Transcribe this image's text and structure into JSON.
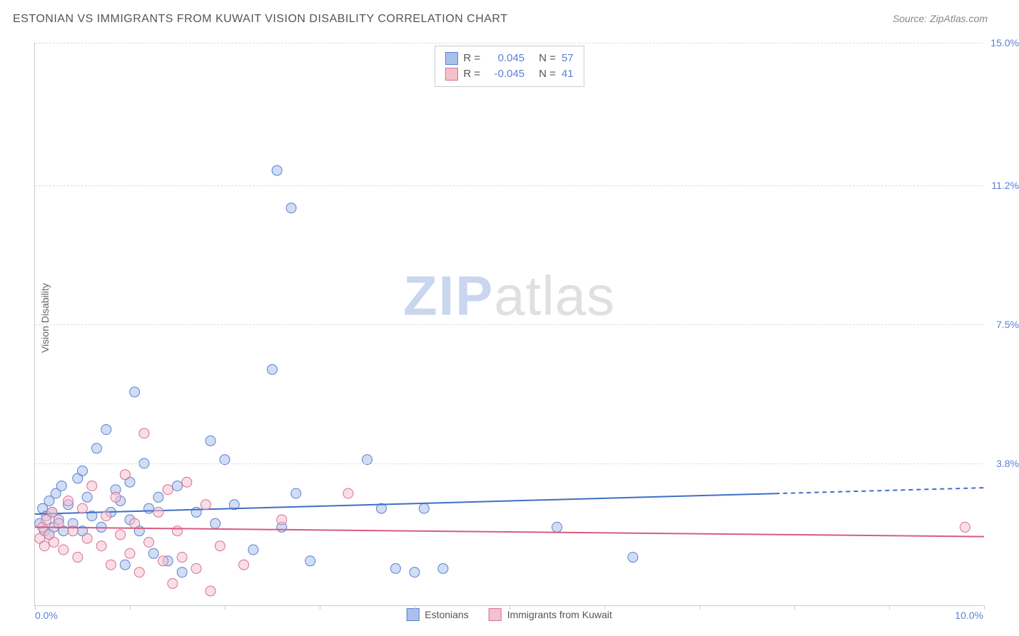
{
  "title": "ESTONIAN VS IMMIGRANTS FROM KUWAIT VISION DISABILITY CORRELATION CHART",
  "source": "Source: ZipAtlas.com",
  "ylabel": "Vision Disability",
  "watermark": {
    "left": "ZIP",
    "right": "atlas"
  },
  "chart": {
    "type": "scatter",
    "background_color": "#ffffff",
    "grid_color": "#dddddd",
    "axis_color": "#cccccc",
    "label_color": "#5b7fd6",
    "xlim": [
      0,
      10
    ],
    "ylim": [
      0,
      15
    ],
    "xticks": [
      0,
      1,
      2,
      3,
      4,
      5,
      6,
      7,
      8,
      9,
      10
    ],
    "xtick_labels": {
      "0": "0.0%",
      "10": "10.0%"
    },
    "yticks": [
      3.8,
      7.5,
      11.2,
      15.0
    ],
    "ytick_labels": [
      "3.8%",
      "7.5%",
      "11.2%",
      "15.0%"
    ],
    "marker_radius": 7,
    "marker_opacity": 0.55,
    "line_width": 2
  },
  "top_legend": [
    {
      "swatch_fill": "#a9c1ea",
      "swatch_stroke": "#5b7fd6",
      "r_label": "R =",
      "r_value": "0.045",
      "n_label": "N =",
      "n_value": "57"
    },
    {
      "swatch_fill": "#f2c2cf",
      "swatch_stroke": "#d87093",
      "r_label": "R =",
      "r_value": "-0.045",
      "n_label": "N =",
      "n_value": "41"
    }
  ],
  "bottom_legend": [
    {
      "swatch_fill": "#a9c1ea",
      "swatch_stroke": "#5b7fd6",
      "label": "Estonians"
    },
    {
      "swatch_fill": "#f2c2cf",
      "swatch_stroke": "#d87093",
      "label": "Immigrants from Kuwait"
    }
  ],
  "series": [
    {
      "name": "Estonians",
      "color_fill": "#a9c1ea",
      "color_stroke": "#5b7fd6",
      "trend": {
        "y_at_x0": 2.45,
        "y_at_x10": 3.15,
        "solid_until_x": 7.8,
        "color": "#3f6fc7"
      },
      "points": [
        [
          0.05,
          2.2
        ],
        [
          0.08,
          2.6
        ],
        [
          0.1,
          2.0
        ],
        [
          0.12,
          2.4
        ],
        [
          0.15,
          2.8
        ],
        [
          0.15,
          1.9
        ],
        [
          0.18,
          2.5
        ],
        [
          0.2,
          2.1
        ],
        [
          0.22,
          3.0
        ],
        [
          0.25,
          2.3
        ],
        [
          0.28,
          3.2
        ],
        [
          0.3,
          2.0
        ],
        [
          0.35,
          2.7
        ],
        [
          0.4,
          2.2
        ],
        [
          0.45,
          3.4
        ],
        [
          0.5,
          2.0
        ],
        [
          0.5,
          3.6
        ],
        [
          0.55,
          2.9
        ],
        [
          0.6,
          2.4
        ],
        [
          0.65,
          4.2
        ],
        [
          0.7,
          2.1
        ],
        [
          0.75,
          4.7
        ],
        [
          0.8,
          2.5
        ],
        [
          0.85,
          3.1
        ],
        [
          0.9,
          2.8
        ],
        [
          0.95,
          1.1
        ],
        [
          1.0,
          2.3
        ],
        [
          1.0,
          3.3
        ],
        [
          1.05,
          5.7
        ],
        [
          1.1,
          2.0
        ],
        [
          1.15,
          3.8
        ],
        [
          1.2,
          2.6
        ],
        [
          1.25,
          1.4
        ],
        [
          1.3,
          2.9
        ],
        [
          1.4,
          1.2
        ],
        [
          1.5,
          3.2
        ],
        [
          1.55,
          0.9
        ],
        [
          1.7,
          2.5
        ],
        [
          1.85,
          4.4
        ],
        [
          1.9,
          2.2
        ],
        [
          2.0,
          3.9
        ],
        [
          2.1,
          2.7
        ],
        [
          2.3,
          1.5
        ],
        [
          2.5,
          6.3
        ],
        [
          2.55,
          11.6
        ],
        [
          2.6,
          2.1
        ],
        [
          2.7,
          10.6
        ],
        [
          2.75,
          3.0
        ],
        [
          2.9,
          1.2
        ],
        [
          3.5,
          3.9
        ],
        [
          3.65,
          2.6
        ],
        [
          3.8,
          1.0
        ],
        [
          4.0,
          0.9
        ],
        [
          4.1,
          2.6
        ],
        [
          4.3,
          1.0
        ],
        [
          5.5,
          2.1
        ],
        [
          6.3,
          1.3
        ]
      ]
    },
    {
      "name": "Immigrants from Kuwait",
      "color_fill": "#f2c2cf",
      "color_stroke": "#d87093",
      "trend": {
        "y_at_x0": 2.1,
        "y_at_x10": 1.85,
        "solid_until_x": 10.0,
        "color": "#d75c7d"
      },
      "points": [
        [
          0.05,
          1.8
        ],
        [
          0.08,
          2.1
        ],
        [
          0.1,
          1.6
        ],
        [
          0.12,
          2.3
        ],
        [
          0.15,
          1.9
        ],
        [
          0.18,
          2.5
        ],
        [
          0.2,
          1.7
        ],
        [
          0.25,
          2.2
        ],
        [
          0.3,
          1.5
        ],
        [
          0.35,
          2.8
        ],
        [
          0.4,
          2.0
        ],
        [
          0.45,
          1.3
        ],
        [
          0.5,
          2.6
        ],
        [
          0.55,
          1.8
        ],
        [
          0.6,
          3.2
        ],
        [
          0.7,
          1.6
        ],
        [
          0.75,
          2.4
        ],
        [
          0.8,
          1.1
        ],
        [
          0.85,
          2.9
        ],
        [
          0.9,
          1.9
        ],
        [
          0.95,
          3.5
        ],
        [
          1.0,
          1.4
        ],
        [
          1.05,
          2.2
        ],
        [
          1.1,
          0.9
        ],
        [
          1.15,
          4.6
        ],
        [
          1.2,
          1.7
        ],
        [
          1.3,
          2.5
        ],
        [
          1.35,
          1.2
        ],
        [
          1.4,
          3.1
        ],
        [
          1.45,
          0.6
        ],
        [
          1.5,
          2.0
        ],
        [
          1.55,
          1.3
        ],
        [
          1.6,
          3.3
        ],
        [
          1.7,
          1.0
        ],
        [
          1.8,
          2.7
        ],
        [
          1.85,
          0.4
        ],
        [
          1.95,
          1.6
        ],
        [
          2.2,
          1.1
        ],
        [
          2.6,
          2.3
        ],
        [
          3.3,
          3.0
        ],
        [
          9.8,
          2.1
        ]
      ]
    }
  ]
}
